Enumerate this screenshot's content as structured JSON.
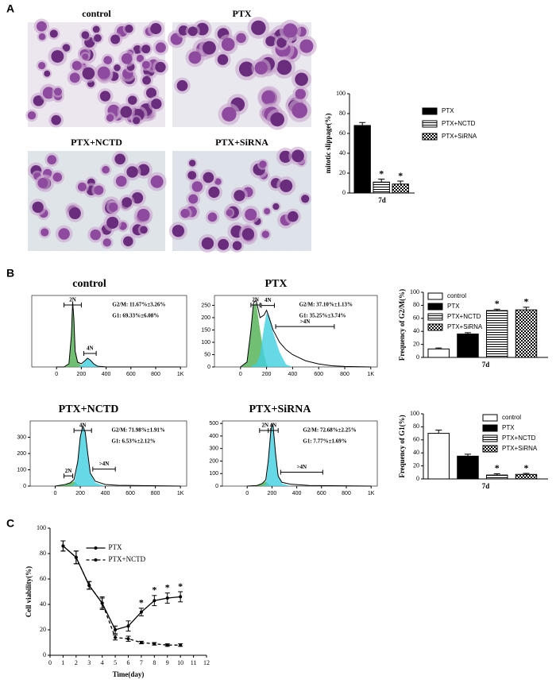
{
  "panel_labels": [
    "A",
    "B",
    "C"
  ],
  "micrographs": [
    "control",
    "PTX",
    "PTX+NCTD",
    "PTX+SiRNA"
  ],
  "chart_data": [
    {
      "type": "bar",
      "ylabel": "mitotic slippage(%)",
      "categories": [
        "7d"
      ],
      "series": [
        {
          "name": "PTX",
          "color": "#000000",
          "pattern": "solid",
          "values": [
            68
          ],
          "errors": [
            3
          ],
          "markers": [
            null
          ]
        },
        {
          "name": "PTX+NCTD",
          "color": "#000000",
          "pattern": "hstripe",
          "values": [
            11
          ],
          "errors": [
            3
          ],
          "markers": [
            "*"
          ]
        },
        {
          "name": "PTX+SiRNA",
          "color": "#000000",
          "pattern": "check",
          "values": [
            9
          ],
          "errors": [
            3
          ],
          "markers": [
            "*"
          ]
        }
      ],
      "ylim": [
        0,
        100
      ],
      "yticks": [
        0,
        20,
        40,
        60,
        80,
        100
      ],
      "legend": "right"
    },
    {
      "type": "flow-histogram",
      "title": "control",
      "stats": [
        "G2/M: 11.67%±3.26%",
        "G1: 69.33%±6.08%"
      ],
      "x": [
        0,
        60,
        100,
        120,
        130,
        140,
        150,
        170,
        200,
        230,
        250,
        270,
        300,
        330,
        400,
        1000
      ],
      "series": [
        {
          "color": "#4caf50",
          "style": "area",
          "values": [
            0,
            0,
            40,
            400,
            820,
            600,
            200,
            60,
            20,
            5,
            0,
            0,
            0,
            0,
            0,
            0
          ]
        },
        {
          "color": "#40d0e0",
          "style": "area",
          "values": [
            0,
            0,
            0,
            0,
            0,
            0,
            0,
            0,
            20,
            75,
            110,
            90,
            40,
            10,
            0,
            0
          ]
        },
        {
          "color": "#000000",
          "style": "line",
          "values": [
            0,
            0,
            40,
            400,
            820,
            600,
            200,
            60,
            40,
            80,
            110,
            90,
            40,
            10,
            0,
            0
          ]
        }
      ],
      "gates": [
        {
          "label": "2N",
          "range": [
            60,
            200
          ]
        },
        {
          "label": "4N",
          "range": [
            220,
            320
          ]
        }
      ],
      "xlim": [
        -200,
        1050
      ],
      "xticks": [
        0,
        200,
        400,
        600,
        800,
        {
          "value": 1000,
          "label": "1K"
        }
      ],
      "ylim": [
        0,
        900
      ]
    },
    {
      "type": "flow-histogram",
      "title": "PTX",
      "stats": [
        "G2/M: 37.10%±1.13%",
        "G1: 35.25%±3.74%"
      ],
      "x": [
        0,
        50,
        80,
        100,
        120,
        150,
        180,
        200,
        220,
        250,
        300,
        350,
        400,
        500,
        600,
        700,
        800,
        1000
      ],
      "series": [
        {
          "color": "#4caf50",
          "style": "area",
          "values": [
            0,
            20,
            150,
            250,
            260,
            150,
            50,
            10,
            0,
            0,
            0,
            0,
            0,
            0,
            0,
            0,
            0,
            0
          ]
        },
        {
          "color": "#40d0e0",
          "style": "area",
          "values": [
            0,
            0,
            0,
            10,
            10,
            50,
            160,
            220,
            200,
            140,
            60,
            10,
            0,
            0,
            0,
            0,
            0,
            0
          ]
        },
        {
          "color": "#000000",
          "style": "line",
          "values": [
            0,
            20,
            150,
            260,
            270,
            200,
            210,
            230,
            200,
            150,
            100,
            70,
            50,
            25,
            12,
            5,
            2,
            0
          ]
        }
      ],
      "gates": [
        {
          "label": "2N",
          "range": [
            80,
            150
          ]
        },
        {
          "label": "4N",
          "range": [
            160,
            260
          ]
        },
        {
          "label": ">4N",
          "range": [
            270,
            720
          ]
        }
      ],
      "xlim": [
        -200,
        1050
      ],
      "xticks": [
        0,
        200,
        400,
        600,
        800,
        {
          "value": 1000,
          "label": "1K"
        }
      ],
      "ylim": [
        0,
        290
      ],
      "yticks": [
        0,
        50,
        100,
        150,
        200,
        250
      ]
    },
    {
      "type": "flow-histogram",
      "title": "PTX+NCTD",
      "stats": [
        "G2/M: 71.98%±1.91%",
        "G1: 6.53%±2.12%"
      ],
      "x": [
        0,
        80,
        120,
        150,
        180,
        200,
        220,
        240,
        260,
        280,
        320,
        400,
        500,
        1000
      ],
      "series": [
        {
          "color": "#4caf50",
          "style": "area",
          "values": [
            0,
            10,
            20,
            30,
            10,
            0,
            0,
            0,
            0,
            0,
            0,
            0,
            0,
            0
          ]
        },
        {
          "color": "#40d0e0",
          "style": "area",
          "values": [
            0,
            0,
            0,
            10,
            140,
            300,
            370,
            330,
            200,
            80,
            20,
            0,
            0,
            0
          ]
        },
        {
          "color": "#000000",
          "style": "line",
          "values": [
            0,
            10,
            20,
            40,
            150,
            300,
            370,
            330,
            200,
            80,
            30,
            10,
            5,
            0
          ]
        }
      ],
      "gates": [
        {
          "label": "2N",
          "range": [
            70,
            140
          ]
        },
        {
          "label": "4N",
          "range": [
            150,
            290
          ]
        },
        {
          "label": ">4N",
          "range": [
            300,
            480
          ]
        }
      ],
      "xlim": [
        -200,
        1050
      ],
      "xticks": [
        0,
        200,
        400,
        600,
        800,
        {
          "value": 1000,
          "label": "1K"
        }
      ],
      "ylim": [
        0,
        400
      ],
      "yticks": [
        0,
        100,
        200,
        300
      ]
    },
    {
      "type": "flow-histogram",
      "title": "PTX+SiRNA",
      "stats": [
        "G2/M: 72.68%±2.25%",
        "G1: 7.77%±1.69%"
      ],
      "x": [
        0,
        80,
        120,
        150,
        170,
        190,
        200,
        210,
        230,
        250,
        280,
        350,
        500,
        1000
      ],
      "series": [
        {
          "color": "#4caf50",
          "style": "area",
          "values": [
            0,
            5,
            20,
            40,
            20,
            0,
            0,
            0,
            0,
            0,
            0,
            0,
            0,
            0
          ]
        },
        {
          "color": "#40d0e0",
          "style": "area",
          "values": [
            0,
            0,
            0,
            10,
            180,
            430,
            500,
            470,
            250,
            80,
            20,
            0,
            0,
            0
          ]
        },
        {
          "color": "#000000",
          "style": "line",
          "values": [
            0,
            5,
            20,
            50,
            200,
            430,
            500,
            470,
            250,
            80,
            30,
            15,
            5,
            0
          ]
        }
      ],
      "gates": [
        {
          "label": "2N",
          "range": [
            100,
            190
          ]
        },
        {
          "label": "4N",
          "range": [
            170,
            250
          ]
        },
        {
          "label": ">4N",
          "range": [
            270,
            610
          ]
        }
      ],
      "xlim": [
        -200,
        1050
      ],
      "xticks": [
        0,
        200,
        400,
        600,
        800,
        {
          "value": 1000,
          "label": "1K"
        }
      ],
      "ylim": [
        0,
        520
      ],
      "yticks": [
        0,
        100,
        200,
        300,
        400,
        500
      ]
    },
    {
      "type": "bar",
      "ylabel": "Frequency of G2/M(%)",
      "categories": [
        "7d"
      ],
      "series": [
        {
          "name": "control",
          "color": "#ffffff",
          "pattern": "solid",
          "values": [
            13
          ],
          "errors": [
            1.5
          ],
          "markers": [
            null
          ]
        },
        {
          "name": "PTX",
          "color": "#000000",
          "pattern": "solid",
          "values": [
            36
          ],
          "errors": [
            2
          ],
          "markers": [
            null
          ]
        },
        {
          "name": "PTX+NCTD",
          "color": "#000000",
          "pattern": "hstripe",
          "values": [
            72
          ],
          "errors": [
            2
          ],
          "markers": [
            "*"
          ]
        },
        {
          "name": "PTX+SiRNA",
          "color": "#000000",
          "pattern": "check",
          "values": [
            73
          ],
          "errors": [
            4
          ],
          "markers": [
            "*"
          ]
        }
      ],
      "ylim": [
        0,
        100
      ],
      "yticks": [
        0,
        20,
        40,
        60,
        80,
        100
      ],
      "legend": "upper left"
    },
    {
      "type": "bar",
      "ylabel": "Frequency of G1(%)",
      "categories": [
        "7d"
      ],
      "series": [
        {
          "name": "control",
          "color": "#ffffff",
          "pattern": "solid",
          "values": [
            70
          ],
          "errors": [
            5
          ],
          "markers": [
            null
          ]
        },
        {
          "name": "PTX",
          "color": "#000000",
          "pattern": "solid",
          "values": [
            35
          ],
          "errors": [
            3
          ],
          "markers": [
            null
          ]
        },
        {
          "name": "PTX+NCTD",
          "color": "#000000",
          "pattern": "hstripe",
          "values": [
            6
          ],
          "errors": [
            2
          ],
          "markers": [
            "*"
          ]
        },
        {
          "name": "PTX+SiRNA",
          "color": "#000000",
          "pattern": "check",
          "values": [
            7
          ],
          "errors": [
            1.5
          ],
          "markers": [
            "*"
          ]
        }
      ],
      "ylim": [
        0,
        100
      ],
      "yticks": [
        0,
        20,
        40,
        60,
        80,
        100
      ],
      "legend": "upper right"
    },
    {
      "type": "line",
      "xlabel": "Time(day)",
      "ylabel": "Cell viability(%)",
      "x": [
        1,
        2,
        3,
        4,
        5,
        6,
        7,
        8,
        9,
        10
      ],
      "series": [
        {
          "name": "PTX",
          "color": "#000000",
          "dash": false,
          "values": [
            86,
            77,
            55,
            41,
            20,
            23,
            34,
            43,
            45,
            46
          ],
          "errors": [
            4,
            5,
            3,
            5,
            3,
            4,
            3,
            4,
            4,
            4
          ],
          "markers": [
            null,
            null,
            null,
            null,
            null,
            null,
            "*",
            "*",
            "*",
            "*"
          ]
        },
        {
          "name": "PTX+NCTD",
          "color": "#000000",
          "dash": true,
          "values": [
            86,
            77,
            55,
            41,
            14,
            13,
            10,
            9,
            8,
            8
          ],
          "errors": [
            4,
            5,
            3,
            4,
            2,
            2,
            1,
            1,
            1,
            1
          ]
        }
      ],
      "xlim": [
        0,
        12
      ],
      "xticks": [
        0,
        1,
        2,
        3,
        4,
        5,
        6,
        7,
        8,
        9,
        10,
        11,
        12
      ],
      "ylim": [
        0,
        100
      ],
      "yticks": [
        0,
        20,
        40,
        60,
        80,
        100
      ],
      "legend": "upper center"
    }
  ]
}
